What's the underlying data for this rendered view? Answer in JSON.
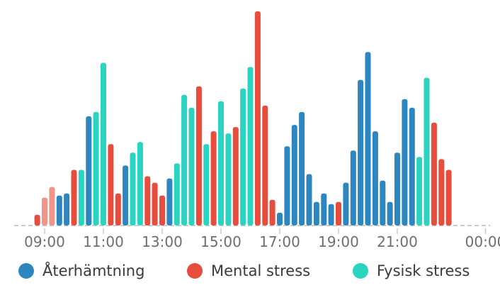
{
  "colors": {
    "recovery": "#2e86c1",
    "mental": "#e74c3c",
    "mental_light": "#f1948a",
    "physical": "#2bd4c0",
    "baseline": "#cccccc",
    "tick_text": "#6e6e6e"
  },
  "legend": [
    {
      "label": "Återhämtning",
      "color": "#2e86c1"
    },
    {
      "label": "Mental stress",
      "color": "#e74c3c"
    },
    {
      "label": "Fysisk stress",
      "color": "#2bd4c0"
    }
  ],
  "chart_data": {
    "type": "bar",
    "title": "",
    "xlabel": "",
    "ylabel": "",
    "ylim": [
      0,
      100
    ],
    "grid": false,
    "legend_position": "bottom",
    "x_ticks": [
      "09:00",
      "11:00",
      "13:00",
      "15:00",
      "17:00",
      "19:00",
      "21:00",
      "00:00"
    ],
    "series": [
      {
        "name": "Återhämtning",
        "color": "#2e86c1"
      },
      {
        "name": "Mental stress",
        "color": "#e74c3c"
      },
      {
        "name": "Fysisk stress",
        "color": "#2bd4c0"
      }
    ],
    "bars": [
      {
        "time": "08:45",
        "value": 5,
        "series": "Mental stress",
        "shade": "dark"
      },
      {
        "time": "09:00",
        "value": 13,
        "series": "Mental stress",
        "shade": "light"
      },
      {
        "time": "09:15",
        "value": 18,
        "series": "Mental stress",
        "shade": "light"
      },
      {
        "time": "09:30",
        "value": 14,
        "series": "Återhämtning"
      },
      {
        "time": "09:45",
        "value": 15,
        "series": "Återhämtning"
      },
      {
        "time": "10:00",
        "value": 26,
        "series": "Mental stress"
      },
      {
        "time": "10:15",
        "value": 26,
        "series": "Fysisk stress"
      },
      {
        "time": "10:30",
        "value": 51,
        "series": "Återhämtning"
      },
      {
        "time": "10:45",
        "value": 53,
        "series": "Fysisk stress"
      },
      {
        "time": "11:00",
        "value": 76,
        "series": "Fysisk stress"
      },
      {
        "time": "11:15",
        "value": 38,
        "series": "Mental stress"
      },
      {
        "time": "11:30",
        "value": 15,
        "series": "Mental stress"
      },
      {
        "time": "11:45",
        "value": 28,
        "series": "Återhämtning"
      },
      {
        "time": "12:00",
        "value": 34,
        "series": "Fysisk stress"
      },
      {
        "time": "12:15",
        "value": 39,
        "series": "Fysisk stress"
      },
      {
        "time": "12:30",
        "value": 23,
        "series": "Mental stress"
      },
      {
        "time": "12:45",
        "value": 20,
        "series": "Mental stress"
      },
      {
        "time": "13:00",
        "value": 14,
        "series": "Mental stress"
      },
      {
        "time": "13:15",
        "value": 22,
        "series": "Återhämtning"
      },
      {
        "time": "13:30",
        "value": 29,
        "series": "Fysisk stress"
      },
      {
        "time": "13:45",
        "value": 61,
        "series": "Fysisk stress"
      },
      {
        "time": "14:00",
        "value": 55,
        "series": "Fysisk stress"
      },
      {
        "time": "14:15",
        "value": 65,
        "series": "Mental stress"
      },
      {
        "time": "14:30",
        "value": 38,
        "series": "Fysisk stress"
      },
      {
        "time": "14:45",
        "value": 44,
        "series": "Mental stress"
      },
      {
        "time": "15:00",
        "value": 58,
        "series": "Fysisk stress"
      },
      {
        "time": "15:15",
        "value": 43,
        "series": "Fysisk stress"
      },
      {
        "time": "15:30",
        "value": 46,
        "series": "Mental stress"
      },
      {
        "time": "15:45",
        "value": 64,
        "series": "Fysisk stress"
      },
      {
        "time": "16:00",
        "value": 74,
        "series": "Fysisk stress"
      },
      {
        "time": "16:15",
        "value": 100,
        "series": "Mental stress"
      },
      {
        "time": "16:30",
        "value": 56,
        "series": "Mental stress"
      },
      {
        "time": "16:45",
        "value": 12,
        "series": "Mental stress"
      },
      {
        "time": "17:00",
        "value": 6,
        "series": "Återhämtning"
      },
      {
        "time": "17:15",
        "value": 37,
        "series": "Återhämtning"
      },
      {
        "time": "17:30",
        "value": 47,
        "series": "Återhämtning"
      },
      {
        "time": "17:45",
        "value": 53,
        "series": "Återhämtning"
      },
      {
        "time": "18:00",
        "value": 24,
        "series": "Återhämtning"
      },
      {
        "time": "18:15",
        "value": 11,
        "series": "Återhämtning"
      },
      {
        "time": "18:30",
        "value": 15,
        "series": "Återhämtning"
      },
      {
        "time": "18:45",
        "value": 10,
        "series": "Återhämtning"
      },
      {
        "time": "19:00",
        "value": 11,
        "series": "Mental stress"
      },
      {
        "time": "19:15",
        "value": 20,
        "series": "Återhämtning"
      },
      {
        "time": "19:30",
        "value": 35,
        "series": "Återhämtning"
      },
      {
        "time": "19:45",
        "value": 68,
        "series": "Återhämtning"
      },
      {
        "time": "20:00",
        "value": 81,
        "series": "Återhämtning"
      },
      {
        "time": "20:15",
        "value": 44,
        "series": "Återhämtning"
      },
      {
        "time": "20:30",
        "value": 21,
        "series": "Återhämtning"
      },
      {
        "time": "20:45",
        "value": 11,
        "series": "Återhämtning"
      },
      {
        "time": "21:00",
        "value": 34,
        "series": "Återhämtning"
      },
      {
        "time": "21:15",
        "value": 59,
        "series": "Återhämtning"
      },
      {
        "time": "21:30",
        "value": 55,
        "series": "Återhämtning"
      },
      {
        "time": "21:45",
        "value": 32,
        "series": "Fysisk stress"
      },
      {
        "time": "22:00",
        "value": 69,
        "series": "Fysisk stress"
      },
      {
        "time": "22:15",
        "value": 48,
        "series": "Mental stress"
      },
      {
        "time": "22:30",
        "value": 31,
        "series": "Mental stress"
      },
      {
        "time": "22:45",
        "value": 26,
        "series": "Mental stress"
      }
    ]
  }
}
